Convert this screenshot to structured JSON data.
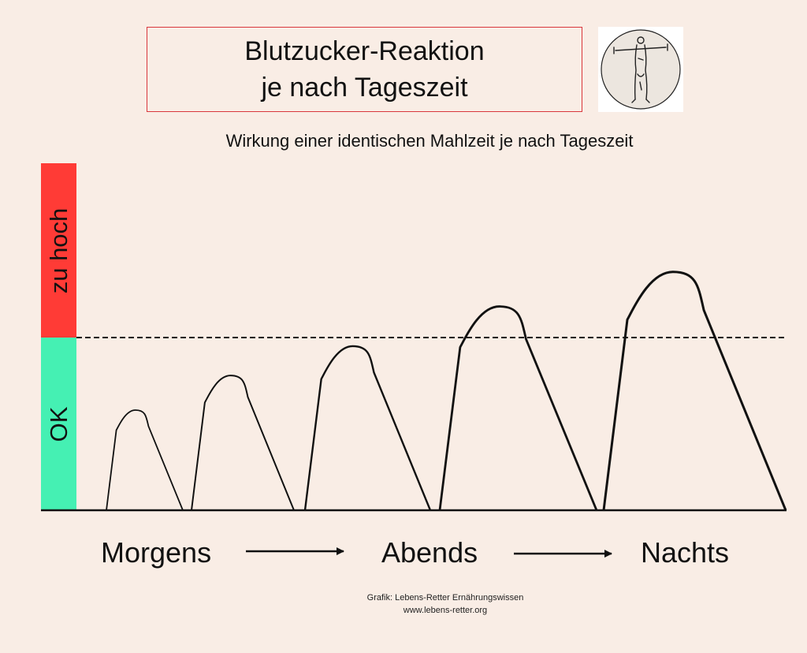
{
  "header": {
    "title_line1": "Blutzucker-Reaktion",
    "title_line2": "je nach Tageszeit",
    "subtitle": "Wirkung einer identischen Mahlzeit je nach Tageszeit",
    "logo_icon": "human-figure-circle-logo"
  },
  "zones": {
    "high_label": "zu hoch",
    "ok_label": "OK",
    "high_color": "#ff3b36",
    "ok_color": "#45f0b3"
  },
  "chart_data": {
    "type": "area",
    "title": "",
    "xlabel": "",
    "ylabel": "",
    "threshold_line": {
      "style": "dashed",
      "label": ""
    },
    "series": [
      {
        "values": [
          0,
          0.58,
          0
        ]
      },
      {
        "values": [
          0,
          0.78,
          0
        ]
      },
      {
        "values": [
          0,
          0.95,
          0
        ]
      },
      {
        "values": [
          0,
          1.18,
          0
        ]
      },
      {
        "values": [
          0,
          1.38,
          0
        ]
      }
    ],
    "value_unit": "relative to threshold (1.0 = limit)"
  },
  "timeline": {
    "labels": [
      "Morgens",
      "Abends",
      "Nachts"
    ],
    "arrow_icon": "right-arrow-icon"
  },
  "credit": {
    "line1": "Grafik: Lebens-Retter Ernährungswissen",
    "line2": "www.lebens-retter.org"
  }
}
